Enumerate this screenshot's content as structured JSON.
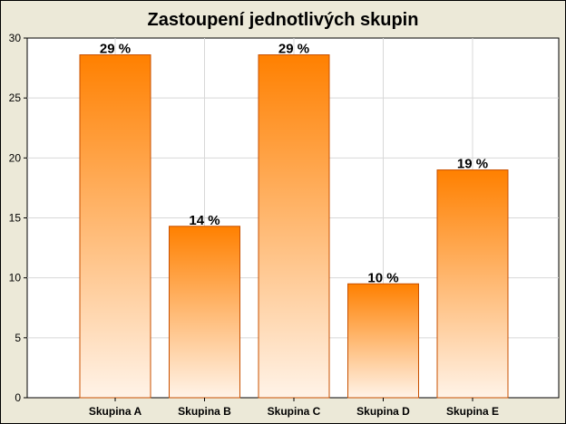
{
  "chart_data": {
    "type": "bar",
    "title": "Zastoupení jednotlivých skupin",
    "categories": [
      "Skupina A",
      "Skupina B",
      "Skupina C",
      "Skupina D",
      "Skupina E"
    ],
    "values": [
      28.6,
      14.3,
      28.6,
      9.5,
      19.0
    ],
    "data_labels": [
      "29 %",
      "14 %",
      "29 %",
      "10 %",
      "19 %"
    ],
    "ylim": [
      0,
      30
    ],
    "yticks": [
      0,
      5,
      10,
      15,
      20,
      25,
      30
    ],
    "grid": true,
    "xlabel": "",
    "ylabel": "",
    "colors": {
      "bar_top": "#ff8000",
      "bar_bottom": "#fff3e8",
      "bar_border": "#c85000",
      "plot_bg": "#ffffff",
      "grid": "#d8d8d8",
      "frame": "#ece9d8"
    }
  }
}
